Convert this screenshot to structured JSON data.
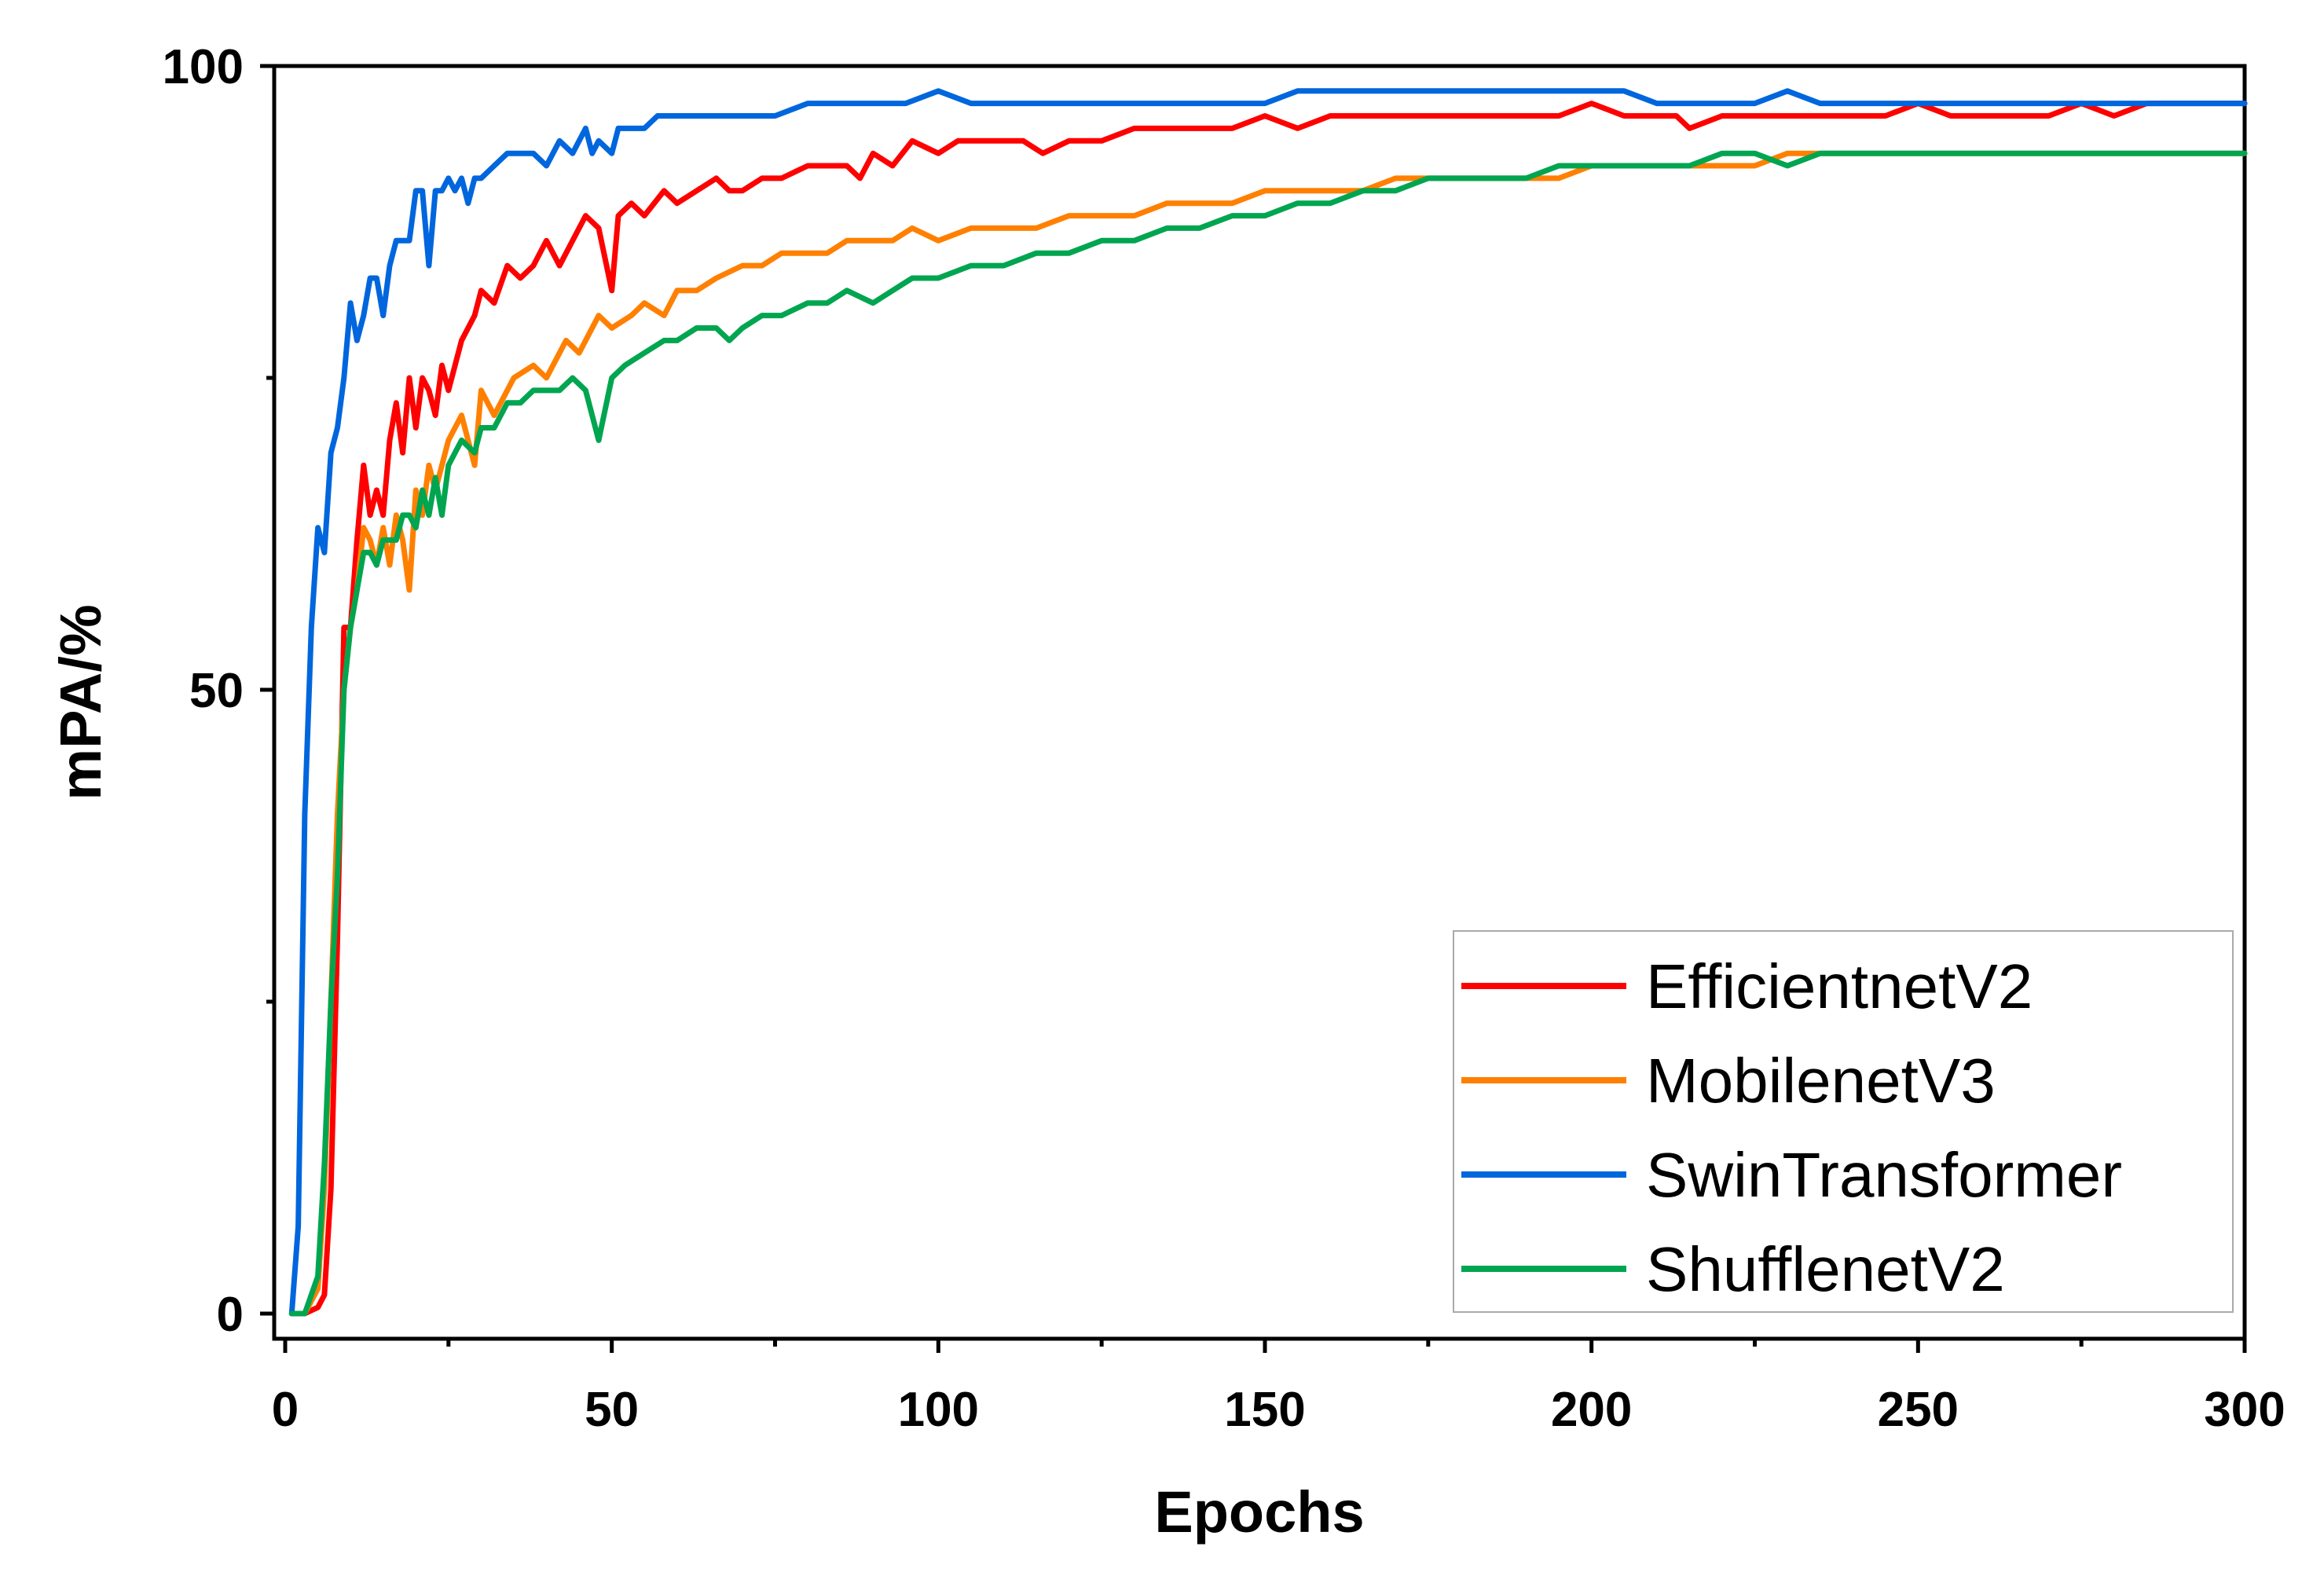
{
  "chart_data": {
    "type": "line",
    "title": "",
    "xlabel": "Epochs",
    "ylabel": "mPA/%",
    "xlim": [
      0,
      300
    ],
    "ylim": [
      0,
      100
    ],
    "xticks": [
      0,
      50,
      100,
      150,
      200,
      250,
      300
    ],
    "yticks": [
      0,
      50,
      100
    ],
    "legend_position": "bottom-right",
    "grid": false,
    "series": [
      {
        "name": "EfficientnetV2",
        "color": "#ff0000",
        "x": [
          1,
          3,
          5,
          6,
          7,
          8,
          9,
          10,
          11,
          12,
          13,
          14,
          15,
          16,
          17,
          18,
          19,
          20,
          21,
          22,
          23,
          24,
          25,
          27,
          29,
          30,
          32,
          34,
          36,
          38,
          40,
          42,
          44,
          46,
          48,
          50,
          51,
          53,
          55,
          58,
          60,
          63,
          66,
          68,
          70,
          73,
          76,
          80,
          83,
          86,
          88,
          90,
          93,
          96,
          100,
          103,
          107,
          110,
          113,
          116,
          120,
          125,
          130,
          135,
          140,
          145,
          150,
          155,
          160,
          165,
          170,
          175,
          180,
          185,
          190,
          195,
          200,
          205,
          210,
          213,
          215,
          220,
          225,
          230,
          235,
          240,
          245,
          250,
          255,
          260,
          265,
          270,
          275,
          280,
          285,
          290,
          295,
          300
        ],
        "values": [
          0,
          0,
          0.5,
          1.5,
          10,
          30,
          55,
          55,
          62,
          68,
          64,
          66,
          64,
          70,
          73,
          69,
          75,
          71,
          75,
          74,
          72,
          76,
          74,
          78,
          80,
          82,
          81,
          84,
          83,
          84,
          86,
          84,
          86,
          88,
          87,
          82,
          88,
          89,
          88,
          90,
          89,
          90,
          91,
          90,
          90,
          91,
          91,
          92,
          92,
          92,
          91,
          93,
          92,
          94,
          93,
          94,
          94,
          94,
          94,
          93,
          94,
          94,
          95,
          95,
          95,
          95,
          96,
          95,
          96,
          96,
          96,
          96,
          96,
          96,
          96,
          96,
          97,
          96,
          96,
          96,
          95,
          96,
          96,
          96,
          96,
          96,
          96,
          97,
          96,
          96,
          96,
          96,
          97,
          96,
          97,
          97,
          97,
          97
        ]
      },
      {
        "name": "MobilenetV3",
        "color": "#ff8000",
        "x": [
          1,
          3,
          5,
          6,
          7,
          8,
          9,
          10,
          11,
          12,
          13,
          14,
          15,
          16,
          17,
          18,
          19,
          20,
          21,
          22,
          23,
          25,
          27,
          29,
          30,
          32,
          35,
          38,
          40,
          43,
          45,
          47,
          48,
          50,
          53,
          55,
          58,
          60,
          63,
          66,
          70,
          73,
          76,
          80,
          83,
          86,
          90,
          93,
          96,
          100,
          105,
          110,
          115,
          120,
          125,
          130,
          135,
          140,
          145,
          150,
          155,
          160,
          165,
          170,
          175,
          180,
          185,
          190,
          195,
          200,
          205,
          210,
          215,
          220,
          225,
          230,
          235,
          240,
          245,
          250,
          255,
          260,
          265,
          270,
          275,
          280,
          285,
          290,
          295,
          300
        ],
        "values": [
          0,
          0,
          2,
          10,
          25,
          40,
          50,
          55,
          58,
          63,
          62,
          60,
          63,
          60,
          64,
          62,
          58,
          66,
          64,
          68,
          66,
          70,
          72,
          68,
          74,
          72,
          75,
          76,
          75,
          78,
          77,
          79,
          80,
          79,
          80,
          81,
          80,
          82,
          82,
          83,
          84,
          84,
          85,
          85,
          85,
          86,
          86,
          86,
          87,
          86,
          87,
          87,
          87,
          88,
          88,
          88,
          89,
          89,
          89,
          90,
          90,
          90,
          90,
          91,
          91,
          91,
          91,
          91,
          91,
          92,
          92,
          92,
          92,
          92,
          92,
          93,
          93,
          93,
          93,
          93,
          93,
          93,
          93,
          93,
          93,
          93,
          93,
          93,
          93,
          93
        ]
      },
      {
        "name": "SwinTransformer",
        "color": "#0066dd",
        "x": [
          1,
          2,
          3,
          4,
          5,
          6,
          7,
          8,
          9,
          10,
          11,
          12,
          13,
          14,
          15,
          16,
          17,
          18,
          19,
          20,
          21,
          22,
          23,
          24,
          25,
          26,
          27,
          28,
          29,
          30,
          32,
          34,
          36,
          38,
          40,
          41,
          42,
          44,
          46,
          47,
          48,
          50,
          51,
          53,
          55,
          57,
          60,
          63,
          66,
          70,
          75,
          80,
          85,
          90,
          95,
          100,
          105,
          110,
          115,
          120,
          125,
          130,
          135,
          140,
          145,
          150,
          155,
          160,
          165,
          170,
          175,
          180,
          185,
          190,
          195,
          200,
          205,
          210,
          215,
          220,
          225,
          230,
          235,
          240,
          245,
          250,
          255,
          260,
          265,
          270,
          275,
          280,
          285,
          290,
          295,
          300
        ],
        "values": [
          0,
          7,
          40,
          55,
          63,
          61,
          69,
          71,
          75,
          81,
          78,
          80,
          83,
          83,
          80,
          84,
          86,
          86,
          86,
          90,
          90,
          84,
          90,
          90,
          91,
          90,
          91,
          89,
          91,
          91,
          92,
          93,
          93,
          93,
          92,
          93,
          94,
          93,
          95,
          93,
          94,
          93,
          95,
          95,
          95,
          96,
          96,
          96,
          96,
          96,
          96,
          97,
          97,
          97,
          97,
          98,
          97,
          97,
          97,
          97,
          97,
          97,
          97,
          97,
          97,
          97,
          98,
          98,
          98,
          98,
          98,
          98,
          98,
          98,
          98,
          98,
          98,
          97,
          97,
          97,
          97,
          98,
          97,
          97,
          97,
          97,
          97,
          97,
          97,
          97,
          97,
          97,
          97,
          97,
          97,
          97
        ]
      },
      {
        "name": "ShufflenetV2",
        "color": "#00a550",
        "x": [
          1,
          3,
          5,
          6,
          7,
          8,
          9,
          10,
          11,
          12,
          13,
          14,
          15,
          16,
          17,
          18,
          19,
          20,
          21,
          22,
          23,
          24,
          25,
          27,
          29,
          30,
          32,
          34,
          36,
          38,
          40,
          42,
          44,
          46,
          48,
          50,
          52,
          55,
          58,
          60,
          63,
          66,
          68,
          70,
          73,
          76,
          80,
          83,
          86,
          90,
          93,
          96,
          100,
          105,
          110,
          115,
          120,
          125,
          130,
          135,
          140,
          145,
          150,
          155,
          160,
          165,
          170,
          175,
          180,
          185,
          190,
          195,
          200,
          205,
          210,
          215,
          220,
          225,
          230,
          235,
          240,
          245,
          250,
          255,
          260,
          265,
          270,
          275,
          280,
          285,
          290,
          295,
          300
        ],
        "values": [
          0,
          0,
          3,
          12,
          25,
          35,
          50,
          55,
          58,
          61,
          61,
          60,
          62,
          62,
          62,
          64,
          64,
          63,
          66,
          64,
          67,
          64,
          68,
          70,
          69,
          71,
          71,
          73,
          73,
          74,
          74,
          74,
          75,
          74,
          70,
          75,
          76,
          77,
          78,
          78,
          79,
          79,
          78,
          79,
          80,
          80,
          81,
          81,
          82,
          81,
          82,
          83,
          83,
          84,
          84,
          85,
          85,
          86,
          86,
          87,
          87,
          88,
          88,
          89,
          89,
          90,
          90,
          91,
          91,
          91,
          91,
          92,
          92,
          92,
          92,
          92,
          93,
          93,
          92,
          93,
          93,
          93,
          93,
          93,
          93,
          93,
          93,
          93,
          93,
          93,
          93,
          93,
          93
        ]
      }
    ]
  }
}
